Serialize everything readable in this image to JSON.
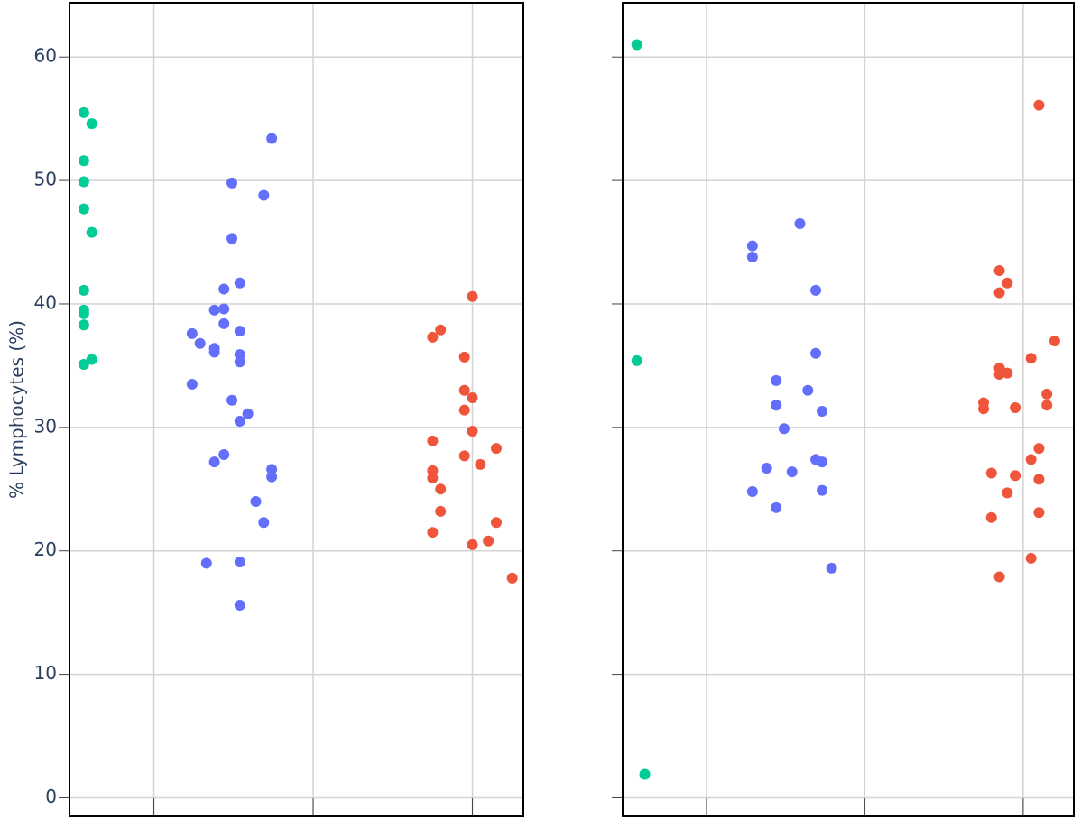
{
  "chart_data": [
    {
      "type": "scatter",
      "ylabel": "% Lymphocytes (%)",
      "ylim": [
        -1.5,
        64.4
      ],
      "xlim": [
        0.47,
        3.32
      ],
      "yticks": [
        0,
        10,
        20,
        30,
        40,
        50,
        60
      ],
      "xticks": [
        1,
        2,
        3
      ],
      "ytick_labels": true,
      "grid": true,
      "series": [
        {
          "color": "#00cc96",
          "x": [
            0.56,
            0.61,
            0.56,
            0.56,
            0.56,
            0.61,
            0.56,
            0.56,
            0.56,
            0.56,
            0.61,
            0.56
          ],
          "values": [
            55.5,
            54.6,
            51.6,
            49.9,
            47.7,
            45.8,
            41.1,
            39.5,
            39.2,
            38.3,
            35.5,
            35.1
          ]
        },
        {
          "color": "#636efa",
          "x": [
            1.74,
            1.49,
            1.69,
            1.49,
            1.54,
            1.44,
            1.38,
            1.44,
            1.44,
            1.24,
            1.54,
            1.29,
            1.38,
            1.38,
            1.54,
            1.54,
            1.24,
            1.49,
            1.59,
            1.54,
            1.44,
            1.38,
            1.74,
            1.74,
            1.64,
            1.69,
            1.33,
            1.54,
            1.54
          ],
          "values": [
            53.4,
            49.8,
            48.8,
            45.3,
            41.7,
            41.2,
            39.5,
            39.6,
            38.4,
            37.6,
            37.8,
            36.8,
            36.4,
            36.1,
            35.9,
            35.3,
            33.5,
            32.2,
            31.1,
            30.5,
            27.8,
            27.2,
            26.6,
            26.0,
            24.0,
            22.3,
            19.0,
            19.1,
            15.6
          ]
        },
        {
          "color": "#ef553b",
          "x": [
            3.0,
            2.8,
            2.75,
            2.95,
            2.95,
            3.0,
            2.95,
            3.0,
            2.75,
            3.15,
            2.95,
            3.05,
            2.75,
            2.75,
            2.8,
            2.8,
            3.15,
            2.75,
            3.1,
            3.0,
            3.25
          ],
          "values": [
            40.6,
            37.9,
            37.3,
            35.7,
            33.0,
            32.4,
            31.4,
            29.7,
            28.9,
            28.3,
            27.7,
            27.0,
            26.5,
            25.9,
            25.0,
            23.2,
            22.3,
            21.5,
            20.8,
            20.5,
            17.8
          ]
        }
      ]
    },
    {
      "type": "scatter",
      "ylim": [
        -1.5,
        64.4
      ],
      "xlim": [
        0.47,
        3.32
      ],
      "yticks": [
        0,
        10,
        20,
        30,
        40,
        50,
        60
      ],
      "xticks": [
        1,
        2,
        3
      ],
      "ytick_labels": false,
      "grid": true,
      "series": [
        {
          "color": "#00cc96",
          "x": [
            0.56,
            0.56,
            0.61
          ],
          "values": [
            61.0,
            35.4,
            1.9
          ]
        },
        {
          "color": "#636efa",
          "x": [
            1.59,
            1.29,
            1.29,
            1.69,
            1.69,
            1.44,
            1.64,
            1.44,
            1.73,
            1.49,
            1.69,
            1.73,
            1.38,
            1.54,
            1.29,
            1.73,
            1.44,
            1.79
          ],
          "values": [
            46.5,
            44.7,
            43.8,
            41.1,
            36.0,
            33.8,
            33.0,
            31.8,
            31.3,
            29.9,
            27.4,
            27.2,
            26.7,
            26.4,
            24.8,
            24.9,
            23.5,
            18.6
          ]
        },
        {
          "color": "#ef553b",
          "x": [
            3.1,
            2.85,
            2.9,
            2.85,
            3.2,
            3.05,
            2.85,
            2.9,
            2.85,
            3.15,
            2.75,
            2.75,
            2.95,
            3.15,
            3.1,
            3.05,
            2.8,
            2.95,
            3.1,
            2.9,
            3.1,
            2.8,
            3.05,
            2.85
          ],
          "values": [
            56.1,
            42.7,
            41.7,
            40.9,
            37.0,
            35.6,
            34.8,
            34.4,
            34.3,
            32.7,
            32.0,
            31.5,
            31.6,
            31.8,
            28.3,
            27.4,
            26.3,
            26.1,
            25.8,
            24.7,
            23.1,
            22.7,
            19.4,
            17.9
          ]
        }
      ]
    }
  ]
}
